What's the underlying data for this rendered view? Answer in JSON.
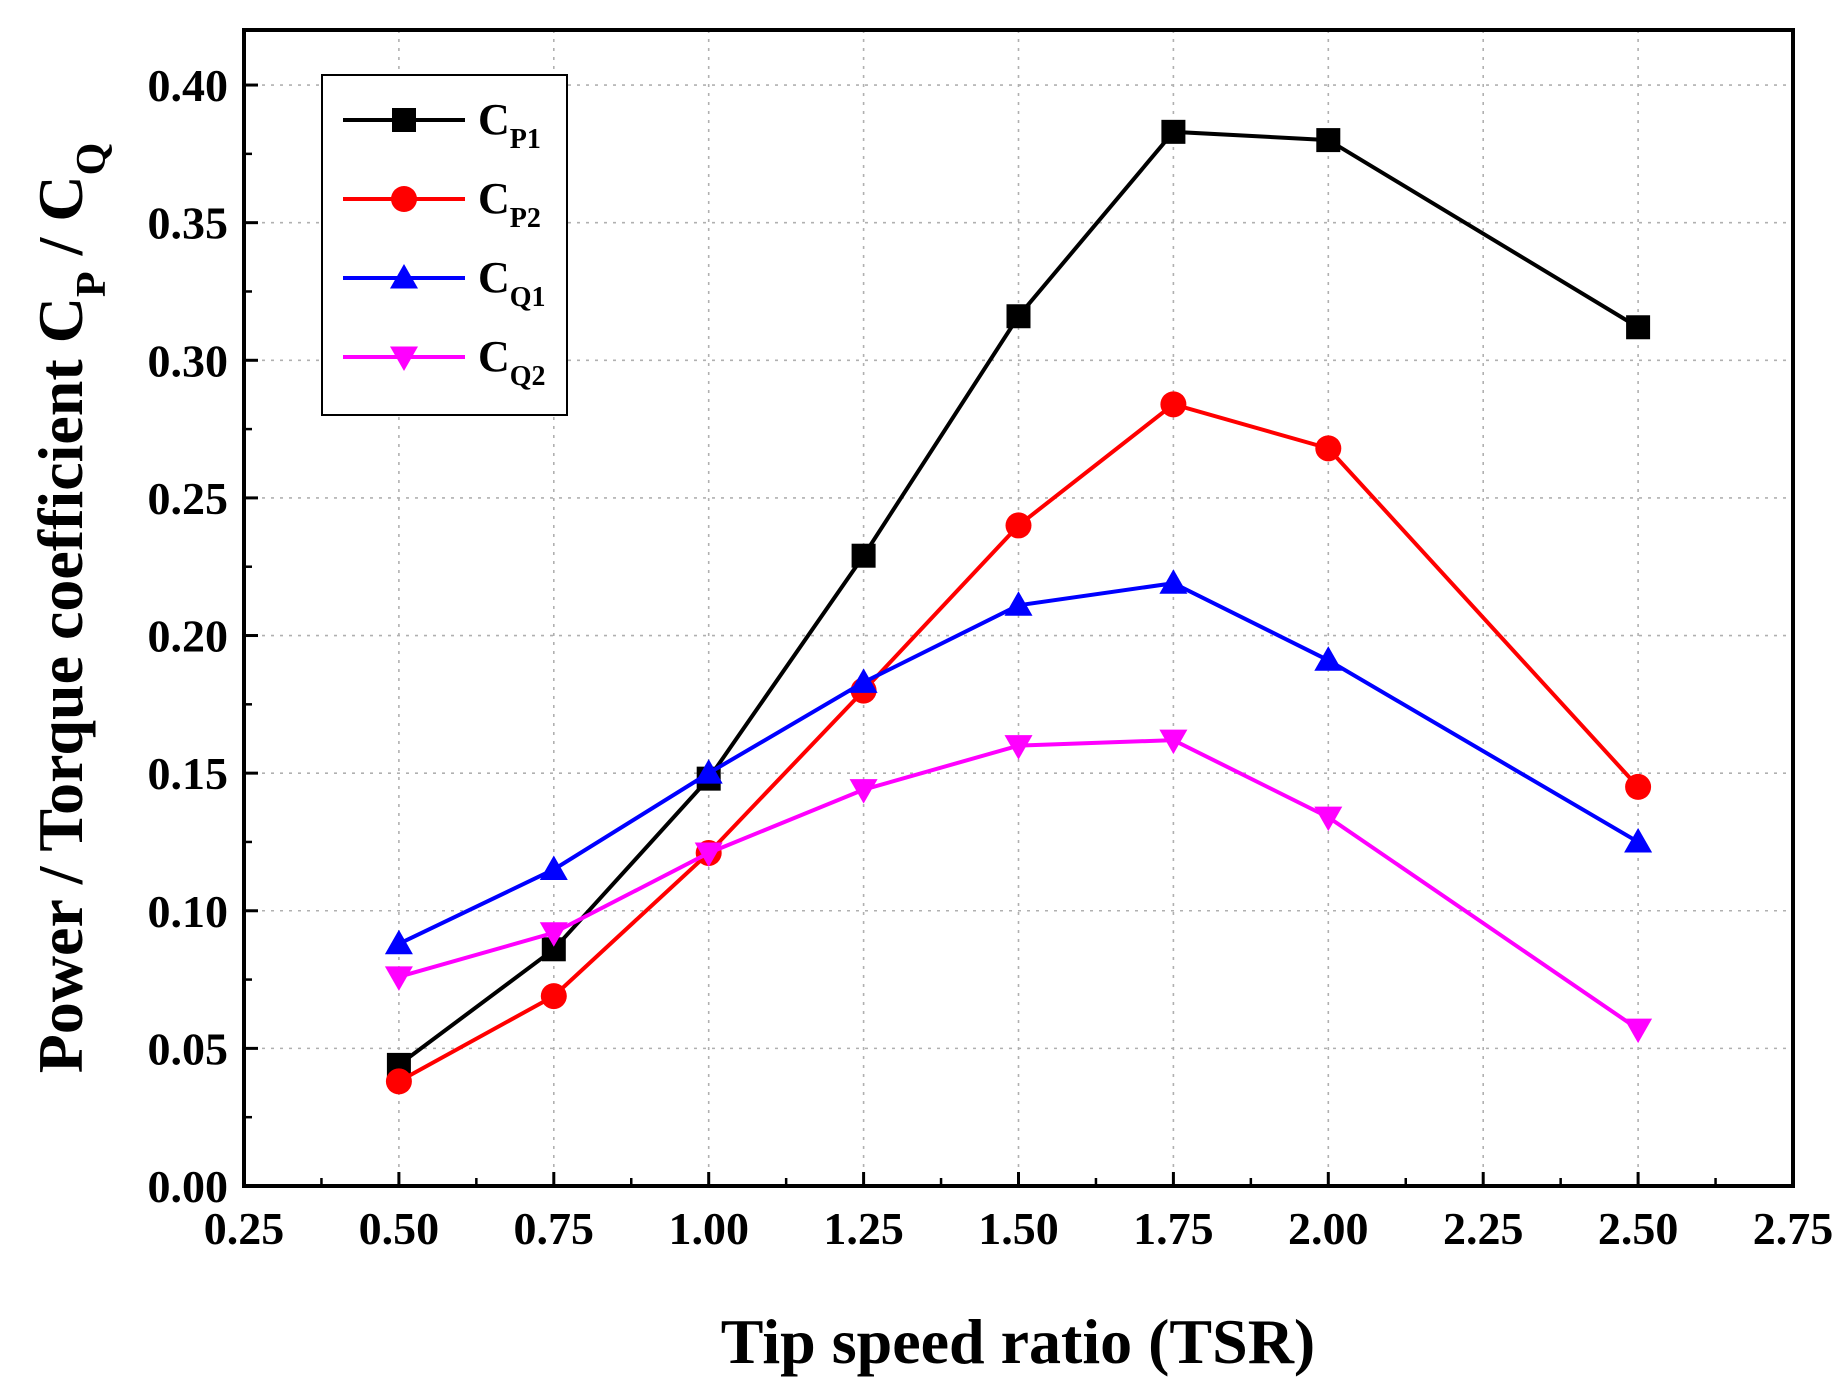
{
  "chart_data": {
    "type": "line",
    "title": "",
    "xlabel": "Tip speed ratio (TSR)",
    "ylabel": {
      "prefix": "Power / Torque coefficient C",
      "sub1": "P",
      "mid": " / C",
      "sub2": "Q"
    },
    "xlim": [
      0.25,
      2.75
    ],
    "ylim": [
      0.0,
      0.42
    ],
    "xticks": [
      "0.25",
      "0.50",
      "0.75",
      "1.00",
      "1.25",
      "1.50",
      "1.75",
      "2.00",
      "2.25",
      "2.50",
      "2.75"
    ],
    "yticks": [
      "0.00",
      "0.05",
      "0.10",
      "0.15",
      "0.20",
      "0.25",
      "0.30",
      "0.35",
      "0.40"
    ],
    "grid": true,
    "legend_position": "top-left",
    "series": [
      {
        "name": "C",
        "sub": "P1",
        "marker": "square",
        "color": "#000000",
        "x": [
          0.5,
          0.75,
          1.0,
          1.25,
          1.5,
          1.75,
          2.0,
          2.5
        ],
        "values": [
          0.044,
          0.086,
          0.148,
          0.229,
          0.316,
          0.383,
          0.38,
          0.312
        ]
      },
      {
        "name": "C",
        "sub": "P2",
        "marker": "circle",
        "color": "#ff0000",
        "x": [
          0.5,
          0.75,
          1.0,
          1.25,
          1.5,
          1.75,
          2.0,
          2.5
        ],
        "values": [
          0.038,
          0.069,
          0.121,
          0.18,
          0.24,
          0.284,
          0.268,
          0.145
        ]
      },
      {
        "name": "C",
        "sub": "Q1",
        "marker": "triangle-up",
        "color": "#0000ff",
        "x": [
          0.5,
          0.75,
          1.0,
          1.25,
          1.5,
          1.75,
          2.0,
          2.5
        ],
        "values": [
          0.088,
          0.115,
          0.15,
          0.183,
          0.211,
          0.219,
          0.191,
          0.125
        ]
      },
      {
        "name": "C",
        "sub": "Q2",
        "marker": "triangle-down",
        "color": "#ff00ff",
        "x": [
          0.5,
          0.75,
          1.0,
          1.25,
          1.5,
          1.75,
          2.0,
          2.5
        ],
        "values": [
          0.076,
          0.092,
          0.121,
          0.144,
          0.16,
          0.162,
          0.134,
          0.057
        ]
      }
    ]
  }
}
